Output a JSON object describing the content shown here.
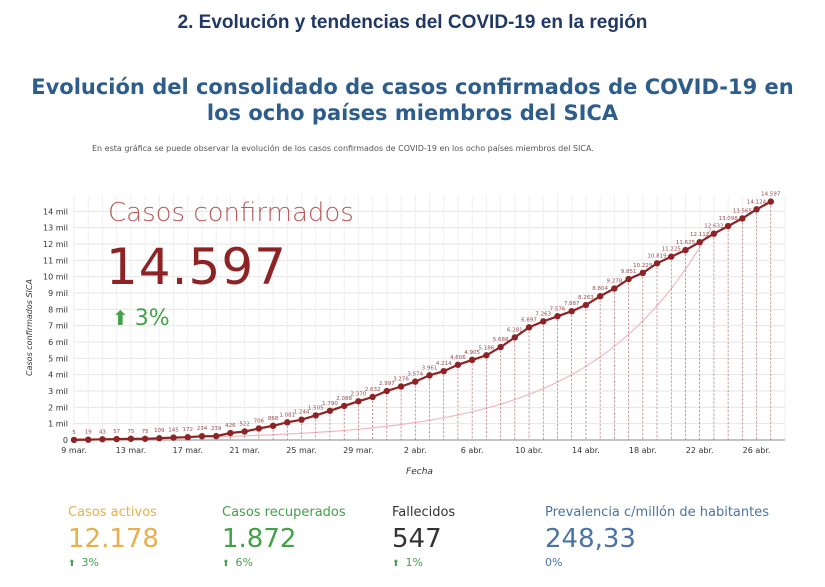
{
  "section_heading": "2. Evolución y tendencias del COVID-19 en la región",
  "main_title_line1": "Evolución del consolidado de casos confirmados de COVID-19 en",
  "main_title_line2": "los ocho países miembros del SICA",
  "subtitle": "En esta gráfica se puede observar la evolución de los casos confirmados de COVID-19 en los ocho países miembros del SICA.",
  "headline": {
    "label": "Casos confirmados",
    "value": "14.597",
    "change": "3%",
    "change_icon": "up-arrow-icon"
  },
  "colors": {
    "line": "#8e2326",
    "dashed": "#b5595a",
    "activos": "#e8b04b",
    "recuperados": "#44a049",
    "fallecidos": "#333333",
    "prevalencia": "#4a74a8",
    "change_up": "#44a049"
  },
  "kpis": [
    {
      "label": "Casos activos",
      "value": "12.178",
      "change": "3%"
    },
    {
      "label": "Casos recuperados",
      "value": "1.872",
      "change": "6%"
    },
    {
      "label": "Fallecidos",
      "value": "547",
      "change": "1%"
    },
    {
      "label": "Prevalencia c/millón de habitantes",
      "value": "248,33",
      "change": "0%"
    }
  ],
  "chart_data": {
    "type": "line",
    "xlabel": "Fecha",
    "ylabel": "Casos confirmados SICA",
    "x_tick_labels": [
      "9 mar.",
      "13 mar.",
      "17 mar.",
      "21 mar.",
      "25 mar.",
      "29 mar.",
      "2 abr.",
      "6 abr.",
      "10 abr.",
      "14 abr.",
      "18 abr.",
      "22 abr.",
      "26 abr."
    ],
    "y_tick_labels": [
      "0",
      "1 mil",
      "2 mil",
      "3 mil",
      "4 mil",
      "5 mil",
      "6 mil",
      "7 mil",
      "8 mil",
      "9 mil",
      "10 mil",
      "11 mil",
      "12 mil",
      "13 mil",
      "14 mil"
    ],
    "ylim": [
      0,
      15000
    ],
    "xlim": [
      0,
      50
    ],
    "grid": true,
    "series": [
      {
        "x": [
          0,
          1,
          2,
          3,
          4,
          5,
          6,
          7,
          8,
          9,
          10,
          11,
          12,
          13,
          14,
          15,
          16,
          17,
          18,
          19,
          20,
          21,
          22,
          23,
          24,
          25,
          26,
          27,
          28,
          29,
          30,
          31,
          32,
          33,
          34,
          35,
          36,
          37,
          38,
          39,
          40,
          41,
          42,
          43,
          44,
          45,
          46,
          47,
          48,
          49
        ],
        "values": [
          5,
          19,
          43,
          57,
          75,
          75,
          109,
          145,
          172,
          234,
          239,
          426,
          522,
          706,
          868,
          1081,
          1244,
          1505,
          1790,
          2088,
          2370,
          2632,
          2997,
          3276,
          3574,
          3961,
          4214,
          4606,
          4905,
          5186,
          5688,
          6281,
          6897,
          7263,
          7576,
          7887,
          8263,
          8804,
          9278,
          9851,
          10229,
          10819,
          11225,
          11625,
          12112,
          12632,
          13098,
          13565,
          14124,
          14597
        ],
        "data_labels": [
          "5",
          "19",
          "43",
          "57",
          "75",
          "75",
          "109",
          "145",
          "172",
          "234",
          "239",
          "426",
          "522",
          "706",
          "868",
          "1.081",
          "1.244",
          "1.505",
          "1.790",
          "2.088",
          "2.370",
          "2.632",
          "2.997",
          "3.276",
          "3.574",
          "3.961",
          "4.214",
          "4.606",
          "4.905",
          "5.186",
          "5.688",
          "6.281",
          "6.897",
          "7.263",
          "7.576",
          "7.887",
          "8.263",
          "8.804",
          "9.278",
          "9.851",
          "10.229",
          "10.819",
          "11.225",
          "11.625",
          "12.112",
          "12.632",
          "13.098",
          "13.565",
          "14.124",
          "14.597"
        ]
      }
    ]
  }
}
